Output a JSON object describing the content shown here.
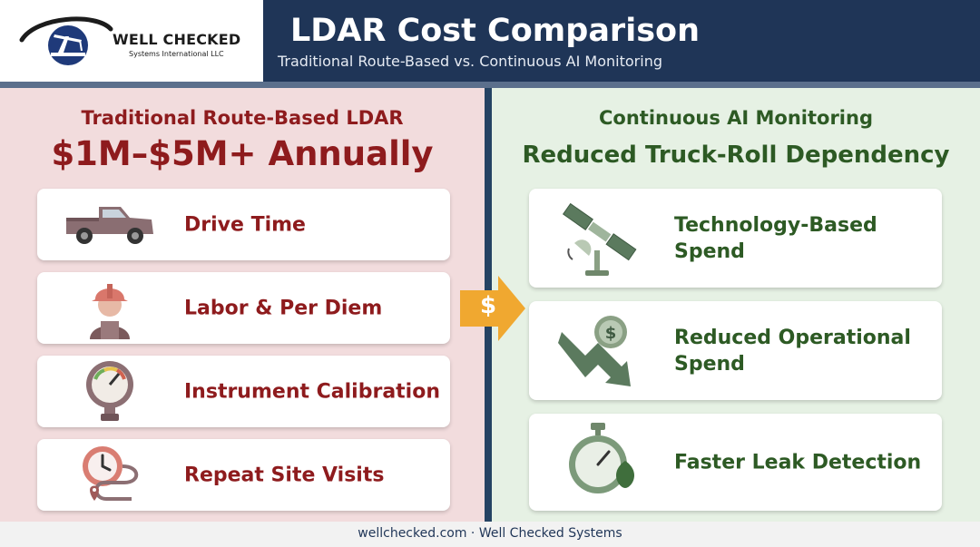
{
  "header": {
    "logo_name": "WELL CHECKED",
    "logo_subtitle": "Systems International LLC",
    "title": "LDAR Cost Comparison",
    "subtitle": "Traditional Route-Based vs. Continuous AI Monitoring"
  },
  "left": {
    "heading": "Traditional Route-Based LDAR",
    "cost": "$1M–$5M+ Annually",
    "items": [
      {
        "label": "Drive Time",
        "icon": "pickup-truck-icon"
      },
      {
        "label": "Labor & Per Diem",
        "icon": "worker-hardhat-icon"
      },
      {
        "label": "Instrument Calibration",
        "icon": "pressure-gauge-icon"
      },
      {
        "label": "Repeat Site Visits",
        "icon": "clock-route-icon"
      }
    ]
  },
  "center": {
    "arrow_symbol": "$",
    "arrow_icon": "dollar-arrow-icon"
  },
  "right": {
    "heading": "Continuous AI Monitoring",
    "subheading": "Reduced Truck-Roll Dependency",
    "items": [
      {
        "label": "Technology-Based Spend",
        "icon": "satellite-icon"
      },
      {
        "label": "Reduced Operational Spend",
        "icon": "falling-dollar-icon"
      },
      {
        "label": "Faster Leak Detection",
        "icon": "stopwatch-drop-icon"
      }
    ]
  },
  "footer": {
    "text": "wellchecked.com · Well Checked Systems"
  },
  "colors": {
    "header_bg": "#1f3557",
    "left_panel_bg": "#f2dcdd",
    "right_panel_bg": "#e6f1e4",
    "left_text": "#8e1b1d",
    "right_text": "#2d5a24",
    "arrow": "#f0a830"
  }
}
